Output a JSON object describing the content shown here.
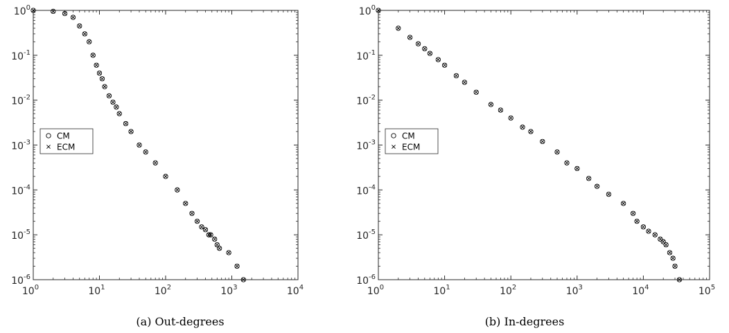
{
  "chart_data": [
    {
      "type": "scatter",
      "scale": "log-log",
      "caption_label": "(a)",
      "caption_text": "Out-degrees",
      "xlim": [
        1,
        10000
      ],
      "ylim": [
        1e-06,
        1
      ],
      "x_ticks": [
        {
          "base": "10",
          "exp": "0"
        },
        {
          "base": "10",
          "exp": "1"
        },
        {
          "base": "10",
          "exp": "2"
        },
        {
          "base": "10",
          "exp": "3"
        },
        {
          "base": "10",
          "exp": "4"
        }
      ],
      "y_ticks": [
        {
          "base": "10",
          "exp": "0"
        },
        {
          "base": "10",
          "exp": "-1"
        },
        {
          "base": "10",
          "exp": "-2"
        },
        {
          "base": "10",
          "exp": "-3"
        },
        {
          "base": "10",
          "exp": "-4"
        },
        {
          "base": "10",
          "exp": "-5"
        },
        {
          "base": "10",
          "exp": "-6"
        }
      ],
      "legend": {
        "position": "left",
        "entries": [
          {
            "label": "CM",
            "marker": "circle"
          },
          {
            "label": "ECM",
            "marker": "cross"
          }
        ]
      },
      "series": [
        {
          "name": "CM",
          "marker": "circle",
          "x": [
            1,
            2,
            3,
            4,
            5,
            6,
            7,
            8,
            9,
            10,
            11,
            12,
            14,
            16,
            18,
            20,
            25,
            30,
            40,
            50,
            70,
            100,
            150,
            200,
            250,
            300,
            350,
            400,
            450,
            480,
            550,
            600,
            650,
            900,
            1200,
            1500
          ],
          "y": [
            1,
            0.95,
            0.85,
            0.7,
            0.45,
            0.3,
            0.2,
            0.1,
            0.06,
            0.04,
            0.03,
            0.02,
            0.0125,
            0.009,
            0.007,
            0.005,
            0.003,
            0.002,
            0.001,
            0.0007,
            0.0004,
            0.0002,
            0.0001,
            5e-05,
            3e-05,
            2e-05,
            1.5e-05,
            1.3e-05,
            1e-05,
            1e-05,
            8e-06,
            6e-06,
            5e-06,
            4e-06,
            2e-06,
            1e-06
          ]
        },
        {
          "name": "ECM",
          "marker": "cross",
          "x": [
            1,
            2,
            3,
            4,
            5,
            6,
            7,
            8,
            9,
            10,
            11,
            12,
            14,
            16,
            18,
            20,
            25,
            30,
            40,
            50,
            70,
            100,
            150,
            200,
            250,
            300,
            350,
            400,
            450,
            480,
            550,
            600,
            650,
            900,
            1200,
            1500
          ],
          "y": [
            1,
            0.95,
            0.85,
            0.7,
            0.45,
            0.3,
            0.2,
            0.1,
            0.06,
            0.04,
            0.03,
            0.02,
            0.0125,
            0.009,
            0.007,
            0.005,
            0.003,
            0.002,
            0.001,
            0.0007,
            0.0004,
            0.0002,
            0.0001,
            5e-05,
            3e-05,
            2e-05,
            1.5e-05,
            1.3e-05,
            1e-05,
            1e-05,
            8e-06,
            6e-06,
            5e-06,
            4e-06,
            2e-06,
            1e-06
          ]
        }
      ]
    },
    {
      "type": "scatter",
      "scale": "log-log",
      "caption_label": "(b)",
      "caption_text": "In-degrees",
      "xlim": [
        1,
        100000
      ],
      "ylim": [
        1e-06,
        1
      ],
      "x_ticks": [
        {
          "base": "10",
          "exp": "0"
        },
        {
          "base": "10",
          "exp": "1"
        },
        {
          "base": "10",
          "exp": "2"
        },
        {
          "base": "10",
          "exp": "3"
        },
        {
          "base": "10",
          "exp": "4"
        },
        {
          "base": "10",
          "exp": "5"
        }
      ],
      "y_ticks": [
        {
          "base": "10",
          "exp": "0"
        },
        {
          "base": "10",
          "exp": "-1"
        },
        {
          "base": "10",
          "exp": "-2"
        },
        {
          "base": "10",
          "exp": "-3"
        },
        {
          "base": "10",
          "exp": "-4"
        },
        {
          "base": "10",
          "exp": "-5"
        },
        {
          "base": "10",
          "exp": "-6"
        }
      ],
      "legend": {
        "position": "left",
        "entries": [
          {
            "label": "CM",
            "marker": "circle"
          },
          {
            "label": "ECM",
            "marker": "cross"
          }
        ]
      },
      "series": [
        {
          "name": "CM",
          "marker": "circle",
          "x": [
            1,
            2,
            3,
            4,
            5,
            6,
            8,
            10,
            15,
            20,
            30,
            50,
            70,
            100,
            150,
            200,
            300,
            500,
            700,
            1000,
            1500,
            2000,
            3000,
            5000,
            7000,
            8000,
            10000,
            12000,
            15000,
            18000,
            20000,
            22000,
            25000,
            28000,
            30000,
            35000
          ],
          "y": [
            1,
            0.4,
            0.25,
            0.18,
            0.14,
            0.11,
            0.08,
            0.06,
            0.035,
            0.025,
            0.015,
            0.008,
            0.006,
            0.004,
            0.0025,
            0.002,
            0.0012,
            0.0007,
            0.0004,
            0.0003,
            0.00018,
            0.00012,
            8e-05,
            5e-05,
            3e-05,
            2e-05,
            1.5e-05,
            1.2e-05,
            1e-05,
            8e-06,
            7e-06,
            6e-06,
            4e-06,
            3e-06,
            2e-06,
            1e-06
          ]
        },
        {
          "name": "ECM",
          "marker": "cross",
          "x": [
            1,
            2,
            3,
            4,
            5,
            6,
            8,
            10,
            15,
            20,
            30,
            50,
            70,
            100,
            150,
            200,
            300,
            500,
            700,
            1000,
            1500,
            2000,
            3000,
            5000,
            7000,
            8000,
            10000,
            12000,
            15000,
            18000,
            20000,
            22000,
            25000,
            28000,
            30000,
            35000
          ],
          "y": [
            1,
            0.4,
            0.25,
            0.18,
            0.14,
            0.11,
            0.08,
            0.06,
            0.035,
            0.025,
            0.015,
            0.008,
            0.006,
            0.004,
            0.0025,
            0.002,
            0.0012,
            0.0007,
            0.0004,
            0.0003,
            0.00018,
            0.00012,
            8e-05,
            5e-05,
            3e-05,
            2e-05,
            1.5e-05,
            1.2e-05,
            1e-05,
            8e-06,
            7e-06,
            6e-06,
            4e-06,
            3e-06,
            2e-06,
            1e-06
          ]
        }
      ]
    }
  ]
}
